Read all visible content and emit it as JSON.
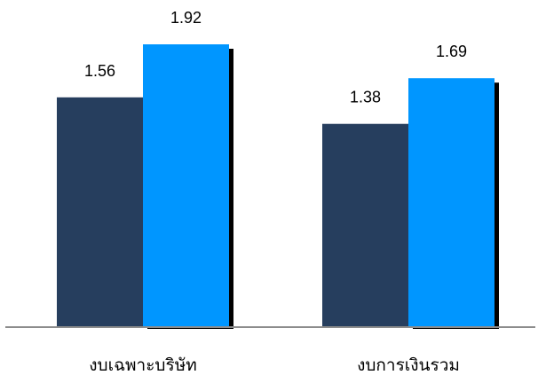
{
  "chart_data": {
    "type": "bar",
    "categories": [
      "งบเฉพาะบริษัท",
      "งบการเงินรวม"
    ],
    "series": [
      {
        "values": [
          1.56,
          1.38
        ],
        "color": "#263e5e"
      },
      {
        "values": [
          1.92,
          1.69
        ],
        "color": "#0096ff"
      }
    ],
    "data_labels": true,
    "shadow_color": "#000000",
    "axis_color": "#8c8c8c",
    "grid": false,
    "legend": "none",
    "ylim": [
      0,
      2.25
    ]
  }
}
